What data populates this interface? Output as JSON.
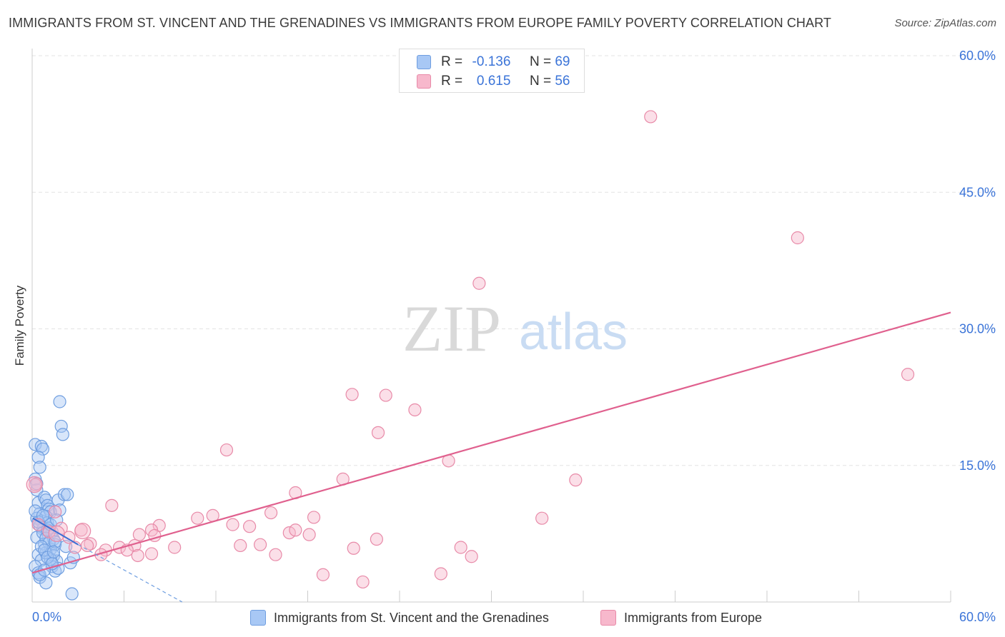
{
  "title": "IMMIGRANTS FROM ST. VINCENT AND THE GRENADINES VS IMMIGRANTS FROM EUROPE FAMILY POVERTY CORRELATION CHART",
  "source": "Source: ZipAtlas.com",
  "watermark": {
    "zip": "ZIP",
    "atlas": "atlas"
  },
  "legend_top": {
    "rows": [
      {
        "r_label": "R =",
        "r_value": "-0.136",
        "n_label": "N =",
        "n_value": "69"
      },
      {
        "r_label": "R =",
        "r_value": "0.615",
        "n_label": "N =",
        "n_value": "56"
      }
    ]
  },
  "colors": {
    "blue_fill": "#a8c8f5",
    "blue_stroke": "#6f9ee0",
    "blue_line": "#3b6fd4",
    "pink_fill": "#f7b8cc",
    "pink_stroke": "#e88aa8",
    "pink_line": "#e0608e",
    "grid": "#e3e3e3",
    "tick_label": "#3b74d8",
    "axis": "#cccccc"
  },
  "chart_data": {
    "type": "scatter",
    "title": "IMMIGRANTS FROM ST. VINCENT AND THE GRENADINES VS IMMIGRANTS FROM EUROPE FAMILY POVERTY CORRELATION CHART",
    "xlabel": "",
    "ylabel": "Family Poverty",
    "xlim": [
      0,
      60
    ],
    "ylim": [
      0,
      60
    ],
    "x_tick_labels": [
      {
        "value": 0,
        "label": "0.0%"
      },
      {
        "value": 60,
        "label": "60.0%"
      }
    ],
    "y_tick_labels": [
      {
        "value": 15,
        "label": "15.0%"
      },
      {
        "value": 30,
        "label": "30.0%"
      },
      {
        "value": 45,
        "label": "45.0%"
      },
      {
        "value": 60,
        "label": "60.0%"
      }
    ],
    "x_minor_ticks": [
      0,
      6,
      12,
      18,
      24,
      30,
      36,
      42,
      48,
      54,
      60
    ],
    "legend_position": "bottom-center",
    "series": [
      {
        "name": "Immigrants from St. Vincent and the Grenadines",
        "color": "#a8c8f5",
        "r": -0.136,
        "n": 69,
        "trend": {
          "x": [
            0.05,
            3.0
          ],
          "y": [
            9.2,
            6.3
          ]
        },
        "trend_extension": {
          "x": [
            3.0,
            9.8
          ],
          "y": [
            6.3,
            0.0
          ]
        },
        "points": [
          [
            0.2,
            13.5
          ],
          [
            0.3,
            12.3
          ],
          [
            0.4,
            10.9
          ],
          [
            0.5,
            9.7
          ],
          [
            0.6,
            8.9
          ],
          [
            0.7,
            8.0
          ],
          [
            0.3,
            7.1
          ],
          [
            0.8,
            6.4
          ],
          [
            0.4,
            5.2
          ],
          [
            0.6,
            4.6
          ],
          [
            0.2,
            3.9
          ],
          [
            0.4,
            3.2
          ],
          [
            0.5,
            2.7
          ],
          [
            0.9,
            2.1
          ],
          [
            0.2,
            17.3
          ],
          [
            0.6,
            17.1
          ],
          [
            0.7,
            16.8
          ],
          [
            0.4,
            15.9
          ],
          [
            0.5,
            14.8
          ],
          [
            0.3,
            13.0
          ],
          [
            0.8,
            11.5
          ],
          [
            0.9,
            11.2
          ],
          [
            1.0,
            10.6
          ],
          [
            1.1,
            10.2
          ],
          [
            1.2,
            9.9
          ],
          [
            0.9,
            9.4
          ],
          [
            1.0,
            8.7
          ],
          [
            1.1,
            8.1
          ],
          [
            1.3,
            7.7
          ],
          [
            1.4,
            6.9
          ],
          [
            1.5,
            6.3
          ],
          [
            1.2,
            5.8
          ],
          [
            1.4,
            5.1
          ],
          [
            1.6,
            4.5
          ],
          [
            1.3,
            3.9
          ],
          [
            1.5,
            3.4
          ],
          [
            1.2,
            4.7
          ],
          [
            0.9,
            5.4
          ],
          [
            1.8,
            22.0
          ],
          [
            1.9,
            19.3
          ],
          [
            2.0,
            18.4
          ],
          [
            1.7,
            11.2
          ],
          [
            1.8,
            10.1
          ],
          [
            2.1,
            11.8
          ],
          [
            2.3,
            11.8
          ],
          [
            2.2,
            6.1
          ],
          [
            2.5,
            4.3
          ],
          [
            2.7,
            4.9
          ],
          [
            1.7,
            3.7
          ],
          [
            2.6,
            0.9
          ],
          [
            0.3,
            9.2
          ],
          [
            0.5,
            8.4
          ],
          [
            0.7,
            7.6
          ],
          [
            0.9,
            7.0
          ],
          [
            1.1,
            6.5
          ],
          [
            0.6,
            6.1
          ],
          [
            0.8,
            5.7
          ],
          [
            1.0,
            4.9
          ],
          [
            1.3,
            4.2
          ],
          [
            1.5,
            6.6
          ],
          [
            0.4,
            8.8
          ],
          [
            0.2,
            10.0
          ],
          [
            0.7,
            9.5
          ],
          [
            1.0,
            7.9
          ],
          [
            1.2,
            8.5
          ],
          [
            1.6,
            9.0
          ],
          [
            0.5,
            3.0
          ],
          [
            0.8,
            3.5
          ],
          [
            1.4,
            5.5
          ]
        ]
      },
      {
        "name": "Immigrants from Europe",
        "color": "#f7b8cc",
        "r": 0.615,
        "n": 56,
        "trend": {
          "x": [
            0.0,
            60.0
          ],
          "y": [
            3.2,
            31.8
          ]
        },
        "points": [
          [
            40.4,
            53.3
          ],
          [
            50.0,
            40.0
          ],
          [
            29.2,
            35.0
          ],
          [
            57.2,
            25.0
          ],
          [
            20.9,
            22.8
          ],
          [
            23.1,
            22.7
          ],
          [
            25.0,
            21.1
          ],
          [
            22.6,
            18.6
          ],
          [
            12.7,
            16.7
          ],
          [
            27.2,
            15.5
          ],
          [
            20.3,
            13.5
          ],
          [
            35.5,
            13.4
          ],
          [
            17.2,
            12.0
          ],
          [
            5.2,
            10.6
          ],
          [
            11.8,
            9.5
          ],
          [
            10.8,
            9.2
          ],
          [
            15.6,
            9.8
          ],
          [
            18.4,
            9.3
          ],
          [
            33.3,
            9.2
          ],
          [
            13.1,
            8.5
          ],
          [
            14.2,
            8.3
          ],
          [
            8.3,
            8.4
          ],
          [
            7.8,
            7.9
          ],
          [
            16.8,
            7.6
          ],
          [
            17.2,
            7.9
          ],
          [
            18.1,
            7.4
          ],
          [
            8.0,
            7.3
          ],
          [
            7.0,
            7.4
          ],
          [
            3.2,
            7.9
          ],
          [
            1.9,
            8.1
          ],
          [
            2.4,
            7.1
          ],
          [
            1.1,
            7.7
          ],
          [
            0.4,
            8.5
          ],
          [
            3.8,
            6.4
          ],
          [
            2.8,
            6.0
          ],
          [
            4.8,
            5.7
          ],
          [
            6.7,
            6.2
          ],
          [
            9.3,
            6.0
          ],
          [
            13.6,
            6.2
          ],
          [
            14.9,
            6.3
          ],
          [
            5.7,
            6.0
          ],
          [
            6.2,
            5.7
          ],
          [
            4.5,
            5.2
          ],
          [
            6.9,
            5.1
          ],
          [
            7.8,
            5.3
          ],
          [
            15.9,
            5.2
          ],
          [
            22.5,
            6.9
          ],
          [
            21.0,
            5.9
          ],
          [
            28.0,
            6.0
          ],
          [
            28.7,
            5.0
          ],
          [
            19.0,
            3.0
          ],
          [
            26.7,
            3.1
          ],
          [
            21.6,
            2.2
          ],
          [
            0.2,
            12.9
          ],
          [
            1.5,
            9.9
          ],
          [
            3.6,
            6.2
          ]
        ],
        "large_points": [
          [
            0.15,
            12.9
          ],
          [
            3.3,
            7.8
          ],
          [
            1.6,
            7.5
          ]
        ]
      }
    ]
  },
  "legend_bottom": [
    {
      "label": "Immigrants from St. Vincent and the Grenadines"
    },
    {
      "label": "Immigrants from Europe"
    }
  ]
}
